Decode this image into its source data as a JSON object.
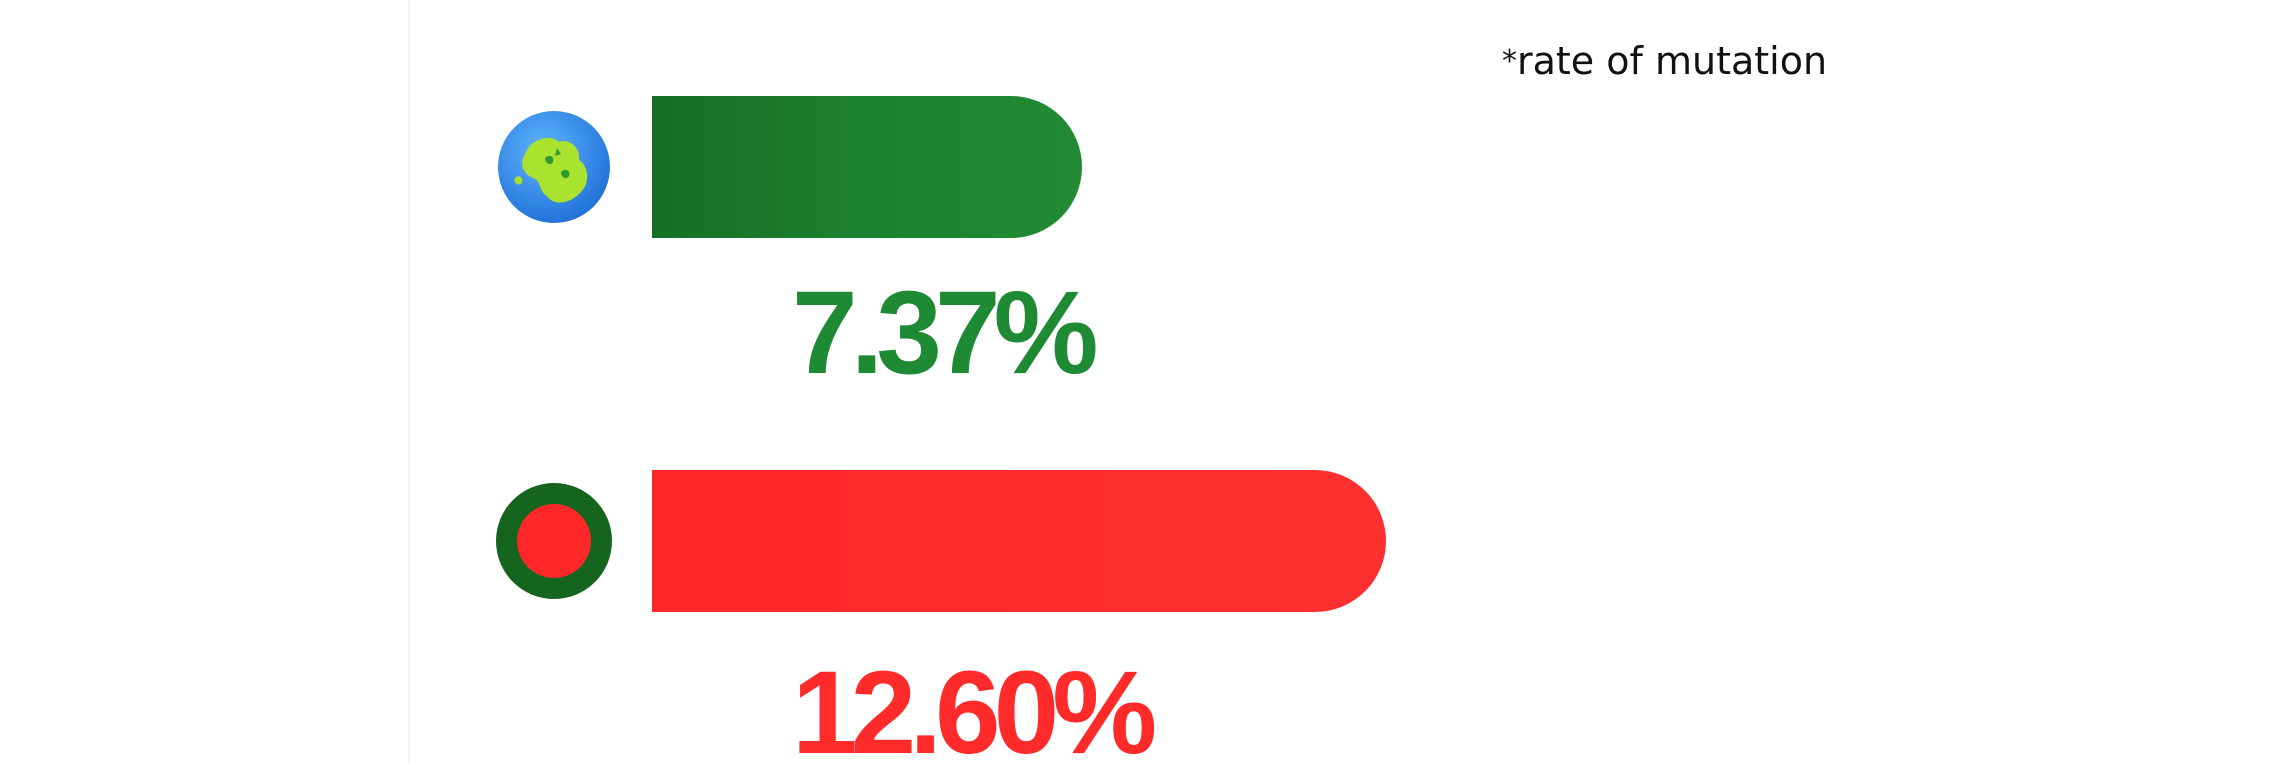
{
  "note": {
    "marker": "*",
    "text": "rate of mutation"
  },
  "chart_data": {
    "type": "bar",
    "orientation": "horizontal",
    "title": "",
    "xlabel": "",
    "ylabel": "",
    "xlim": [
      0,
      17.5
    ],
    "grid": false,
    "legend": "none",
    "annotation": "*rate of mutation",
    "series": [
      {
        "values": [
          7.37,
          12.6
        ],
        "labels": [
          "7.37%",
          "12.60%"
        ],
        "colors": [
          "#1d842e",
          "#ff2b2b"
        ],
        "icons": [
          "globe-icon",
          "red-circle-on-green-disc-icon"
        ]
      }
    ]
  }
}
